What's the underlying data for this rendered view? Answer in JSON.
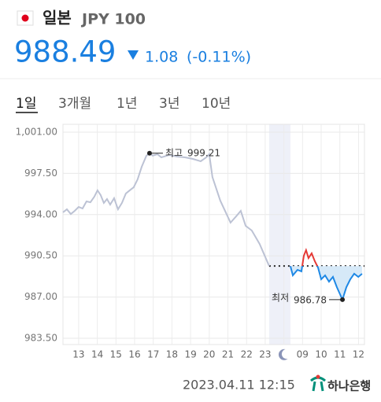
{
  "header": {
    "country": "일본",
    "currency": "JPY 100",
    "price": "988.49",
    "change": "1.08",
    "change_percent": "(-0.11%)"
  },
  "tabs": [
    "1일",
    "3개월",
    "1년",
    "3년",
    "10년"
  ],
  "chart_data": {
    "type": "line",
    "ylim": [
      983.5,
      1001.0
    ],
    "yticks": [
      {
        "value": 983.5,
        "label": "983.50"
      },
      {
        "value": 987.0,
        "label": "987.00"
      },
      {
        "value": 990.5,
        "label": "990.50"
      },
      {
        "value": 994.0,
        "label": "994.00"
      },
      {
        "value": 997.5,
        "label": "997.50"
      },
      {
        "value": 1001.0,
        "label": "1,001.00"
      }
    ],
    "xlim": [
      0.16,
      16.32
    ],
    "xticks": [
      {
        "value": 1,
        "label": "13"
      },
      {
        "value": 2,
        "label": "14"
      },
      {
        "value": 3,
        "label": "15"
      },
      {
        "value": 4,
        "label": "16"
      },
      {
        "value": 5,
        "label": "17"
      },
      {
        "value": 6,
        "label": "18"
      },
      {
        "value": 7,
        "label": "19"
      },
      {
        "value": 8,
        "label": "20"
      },
      {
        "value": 9,
        "label": "21"
      },
      {
        "value": 10,
        "label": "22"
      },
      {
        "value": 11,
        "label": "23"
      },
      {
        "value": 12,
        "label": null
      },
      {
        "value": 13,
        "label": "09"
      },
      {
        "value": 14,
        "label": "10"
      },
      {
        "value": 15,
        "label": "11"
      },
      {
        "value": 16,
        "label": "12"
      }
    ],
    "grid": true,
    "series": [
      {
        "color": "#bcc2d4",
        "x": [
          0.16,
          0.37,
          0.58,
          0.79,
          1,
          1.21,
          1.42,
          1.63,
          1.84,
          2.01,
          2.18,
          2.35,
          2.52,
          2.69,
          2.9,
          3.11,
          3.32,
          3.53,
          3.74,
          3.95,
          4.16,
          4.38,
          4.63,
          4.8,
          4.97,
          5.22,
          5.43,
          5.85,
          6.27,
          6.7,
          7.12,
          7.54,
          7.84,
          8.0,
          8.17,
          8.59,
          9.14,
          9.44,
          9.69,
          9.95,
          10.28,
          10.7,
          11.21
        ],
        "values": [
          994.19,
          994.45,
          994.05,
          994.32,
          994.65,
          994.52,
          995.12,
          995.05,
          995.52,
          996.06,
          995.66,
          994.99,
          995.32,
          994.85,
          995.39,
          994.45,
          994.99,
          995.79,
          996.06,
          996.32,
          996.99,
          998.06,
          999.0,
          999.21,
          999.0,
          999.13,
          998.86,
          999.06,
          998.93,
          998.86,
          998.73,
          998.53,
          998.86,
          999.13,
          997.19,
          995.19,
          993.32,
          993.85,
          994.32,
          993.05,
          992.65,
          991.51,
          989.64
        ]
      },
      {
        "color": "#1e88e5",
        "up_color": "#e53935",
        "fill": "#d6e9f8",
        "x": [
          12.35,
          12.48,
          12.73,
          12.94,
          13.07,
          13.19,
          13.32,
          13.49,
          13.66,
          13.83,
          14.0,
          14.21,
          14.42,
          14.63,
          14.84,
          15.01,
          15.14,
          15.35,
          15.56,
          15.77,
          15.99,
          16.19
        ],
        "values": [
          989.64,
          988.84,
          989.31,
          989.18,
          990.51,
          990.98,
          990.31,
          990.71,
          990.04,
          989.51,
          988.51,
          988.84,
          988.31,
          988.71,
          987.84,
          987.24,
          986.78,
          987.84,
          988.51,
          988.98,
          988.71,
          988.98
        ]
      }
    ],
    "annotations": [
      {
        "label": "최고",
        "value": 999.21,
        "x": 4.8
      },
      {
        "label": "최저",
        "value": 986.78,
        "x": 15.14
      }
    ]
  },
  "footer": {
    "timestamp": "2023.04.11 12:15",
    "bank": "하나은행"
  }
}
